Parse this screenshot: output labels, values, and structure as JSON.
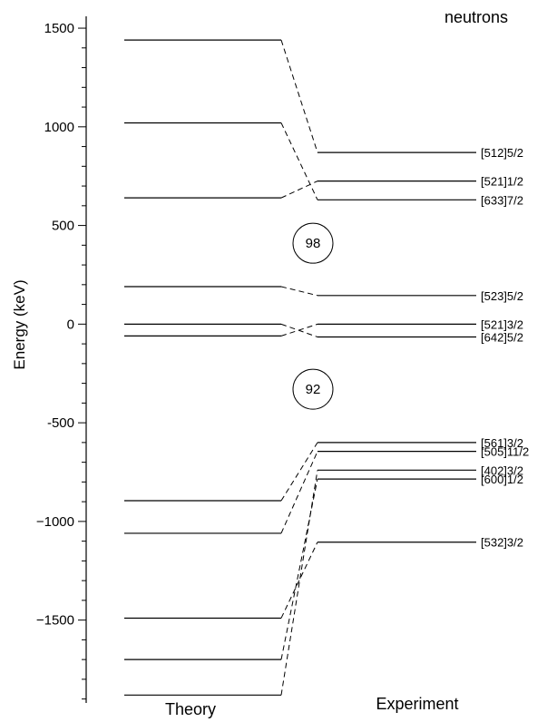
{
  "chart_data": {
    "type": "level-scheme",
    "title": "neutrons",
    "ylabel": "Energy (keV)",
    "ylim": [
      -1920,
      1560
    ],
    "yticks": [
      1500,
      1000,
      500,
      0,
      -500,
      -1000,
      -1500
    ],
    "ytick_labels": [
      "1500",
      "1000",
      "500",
      "0",
      "-500",
      "−1000",
      "−1500"
    ],
    "minor_tick_step": 100,
    "columns": [
      "Theory",
      "Experiment"
    ],
    "levels": [
      {
        "label": "[512]5/2",
        "theory": 1440,
        "experiment": 870
      },
      {
        "label": "[521]1/2",
        "theory": 640,
        "experiment": 725
      },
      {
        "label": "[633]7/2",
        "theory": 1020,
        "experiment": 630
      },
      {
        "label": "[523]5/2",
        "theory": 190,
        "experiment": 145
      },
      {
        "label": "[521]3/2",
        "theory": -60,
        "experiment": 0
      },
      {
        "label": "[642]5/2",
        "theory": 0,
        "experiment": -65
      },
      {
        "label": "[561]3/2",
        "theory": -895,
        "experiment": -600
      },
      {
        "label": "[505]11/2",
        "theory": -1060,
        "experiment": -645
      },
      {
        "label": "[402]3/2",
        "theory": -1880,
        "experiment": -740
      },
      {
        "label": "[600]1/2",
        "theory": -1700,
        "experiment": -785
      },
      {
        "label": "[532]3/2",
        "theory": -1490,
        "experiment": -1105
      }
    ],
    "magic_numbers": [
      {
        "label": "98",
        "energy": 410
      },
      {
        "label": "92",
        "energy": -330
      }
    ],
    "legend": null,
    "grid": false
  }
}
